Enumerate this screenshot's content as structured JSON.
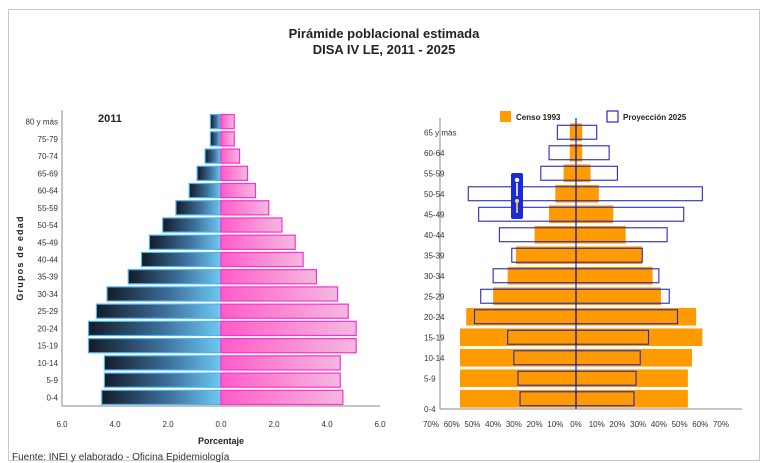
{
  "title": "Pirámide poblacional estimada",
  "subtitle": "DISA  IV LE, 2011 - 2025",
  "source": "Fuente: INEI y elaborado - Oficina Epidemiología",
  "colors": {
    "male": "#3a9ed8",
    "female": "#ff44cc",
    "censo": "#ff9a00",
    "proyeccion": "#2a2ab8"
  },
  "chart_data": [
    {
      "type": "bar",
      "orientation": "horizontal",
      "title": "2011",
      "ylabel": "Grupos de edad",
      "xlabel": "Porcentaje",
      "xlim": [
        -6,
        6
      ],
      "xticks": [
        "6.0",
        "4.0",
        "2.0",
        "0.0",
        "2.0",
        "4.0",
        "6.0"
      ],
      "categories": [
        "0-4",
        "5-9",
        "10-14",
        "15-19",
        "20-24",
        "25-29",
        "30-34",
        "35-39",
        "40-44",
        "45-49",
        "50-54",
        "55-59",
        "60-64",
        "65-69",
        "70-74",
        "75-79",
        "80 y más"
      ],
      "series": [
        {
          "values": [
            -4.5,
            -4.4,
            -4.4,
            -5.0,
            -5.0,
            -4.7,
            -4.3,
            -3.5,
            -3.0,
            -2.7,
            -2.2,
            -1.7,
            -1.2,
            -0.9,
            -0.6,
            -0.4,
            -0.4
          ]
        },
        {
          "values": [
            4.6,
            4.5,
            4.5,
            5.1,
            5.1,
            4.8,
            4.4,
            3.6,
            3.1,
            2.8,
            2.3,
            1.8,
            1.3,
            1.0,
            0.7,
            0.5,
            0.5
          ]
        }
      ]
    },
    {
      "type": "bar",
      "orientation": "horizontal",
      "xlim": [
        -70,
        70
      ],
      "xticks": [
        "70%",
        "60%",
        "50%",
        "40%",
        "30%",
        "20%",
        "10%",
        "0%",
        "10%",
        "20%",
        "30%",
        "40%",
        "50%",
        "60%",
        "70%"
      ],
      "yticks": [
        "0-4",
        "5-9",
        "10-14",
        "15-19",
        "20-24",
        "25-29",
        "30-34",
        "35-39",
        "40-44",
        "45-49",
        "50-54",
        "55-59",
        "60-64",
        "65 y más"
      ],
      "yaxis_zero_label": "0-4",
      "categories": [
        "0-4",
        "5-9",
        "10-14",
        "15-19",
        "20-24",
        "25-29",
        "30-34",
        "35-39",
        "40-44",
        "45-49",
        "50-54",
        "55-59",
        "60-64",
        "65 y más"
      ],
      "legend": [
        "Censo 1993",
        "Proyección 2025"
      ],
      "legend_position": "top",
      "series": [
        {
          "name": "Censo 1993",
          "left": [
            -56,
            -56,
            -56,
            -56,
            -53,
            -40,
            -33,
            -29,
            -20,
            -13,
            -10,
            -6,
            -3,
            -3
          ],
          "right": [
            54,
            54,
            56,
            61,
            58,
            41,
            37,
            32,
            24,
            18,
            11,
            7,
            3,
            3
          ]
        },
        {
          "name": "Proyección 2025",
          "left": [
            -27,
            -28,
            -30,
            -33,
            -49,
            -46,
            -40,
            -31,
            -37,
            -47,
            -52,
            -17,
            -13,
            -9
          ],
          "right": [
            28,
            29,
            31,
            35,
            49,
            45,
            40,
            32,
            44,
            52,
            61,
            20,
            16,
            10
          ]
        }
      ]
    }
  ]
}
